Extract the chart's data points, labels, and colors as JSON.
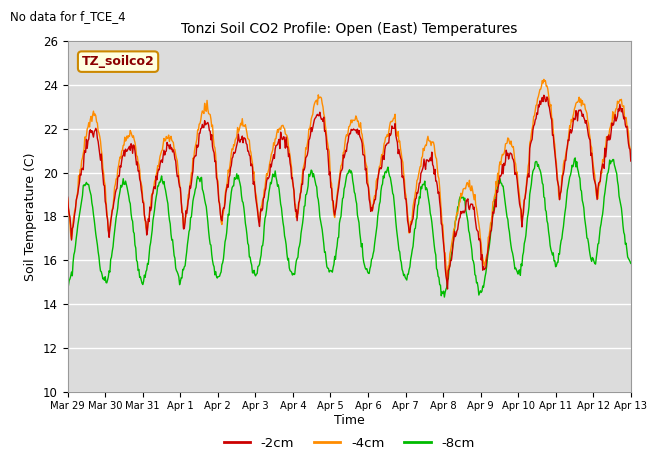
{
  "title": "Tonzi Soil CO2 Profile: Open (East) Temperatures",
  "subtitle": "No data for f_TCE_4",
  "xlabel": "Time",
  "ylabel": "Soil Temperature (C)",
  "ylim": [
    10,
    26
  ],
  "yticks": [
    10,
    12,
    14,
    16,
    18,
    20,
    22,
    24,
    26
  ],
  "bg_color": "#dcdcdc",
  "legend_label": "TZ_soilco2",
  "series_labels": [
    "-2cm",
    "-4cm",
    "-8cm"
  ],
  "series_colors": [
    "#cc0000",
    "#ff8c00",
    "#00bb00"
  ],
  "xtick_labels": [
    "Mar 29",
    "Mar 30",
    "Mar 31",
    "Apr 1",
    "Apr 2",
    "Apr 3",
    "Apr 4",
    "Apr 5",
    "Apr 6",
    "Apr 7",
    "Apr 8",
    "Apr 9",
    "Apr 10",
    "Apr 11",
    "Apr 12",
    "Apr 13"
  ],
  "n_days": 15,
  "pts_per_day": 48
}
